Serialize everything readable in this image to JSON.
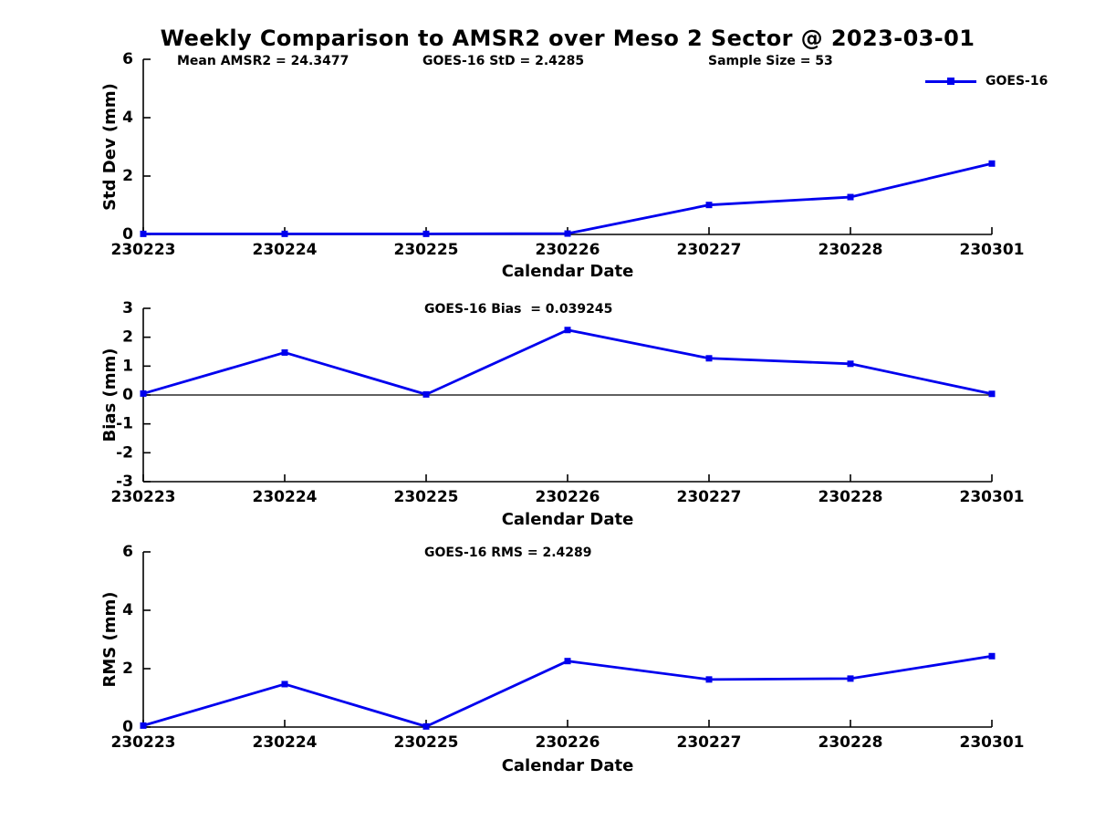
{
  "title": "Weekly Comparison to AMSR2 over Meso 2 Sector @ 2023-03-01",
  "colors": {
    "line": "#0000EE",
    "axis": "#000000",
    "zero_line": "#000000"
  },
  "legend": {
    "label": "GOES-16"
  },
  "annotations": {
    "mean_amsr2": "Mean AMSR2 = 24.3477",
    "goes16_std": "GOES-16 StD = 2.4285",
    "sample_size": "Sample Size = 53",
    "goes16_bias": "GOES-16 Bias  = 0.039245",
    "goes16_rms": "GOES-16 RMS = 2.4289"
  },
  "chart_data": [
    {
      "type": "line",
      "categories": [
        "230223",
        "230224",
        "230225",
        "230226",
        "230227",
        "230228",
        "230301"
      ],
      "series": [
        {
          "name": "GOES-16",
          "values": [
            0.02,
            0.02,
            0.02,
            0.03,
            1.01,
            1.28,
            2.4285
          ]
        }
      ],
      "xlabel": "Calendar Date",
      "ylabel": "Std Dev (mm)",
      "ylim": [
        0,
        6
      ],
      "yticks": [
        0,
        2,
        4,
        6
      ],
      "zero_line": false,
      "grid": false,
      "legend_position": "top-right"
    },
    {
      "type": "line",
      "categories": [
        "230223",
        "230224",
        "230225",
        "230226",
        "230227",
        "230228",
        "230301"
      ],
      "series": [
        {
          "name": "GOES-16",
          "values": [
            0.05,
            1.47,
            0.02,
            2.25,
            1.27,
            1.08,
            0.039245
          ]
        }
      ],
      "xlabel": "Calendar Date",
      "ylabel": "Bias (mm)",
      "ylim": [
        -3,
        3
      ],
      "yticks": [
        -3,
        -2,
        -1,
        0,
        1,
        2,
        3
      ],
      "zero_line": true,
      "grid": false,
      "legend_position": "none"
    },
    {
      "type": "line",
      "categories": [
        "230223",
        "230224",
        "230225",
        "230226",
        "230227",
        "230228",
        "230301"
      ],
      "series": [
        {
          "name": "GOES-16",
          "values": [
            0.05,
            1.47,
            0.02,
            2.26,
            1.63,
            1.66,
            2.4289
          ]
        }
      ],
      "xlabel": "Calendar Date",
      "ylabel": "RMS (mm)",
      "ylim": [
        0,
        6
      ],
      "yticks": [
        0,
        2,
        4,
        6
      ],
      "zero_line": false,
      "grid": false,
      "legend_position": "none"
    }
  ]
}
